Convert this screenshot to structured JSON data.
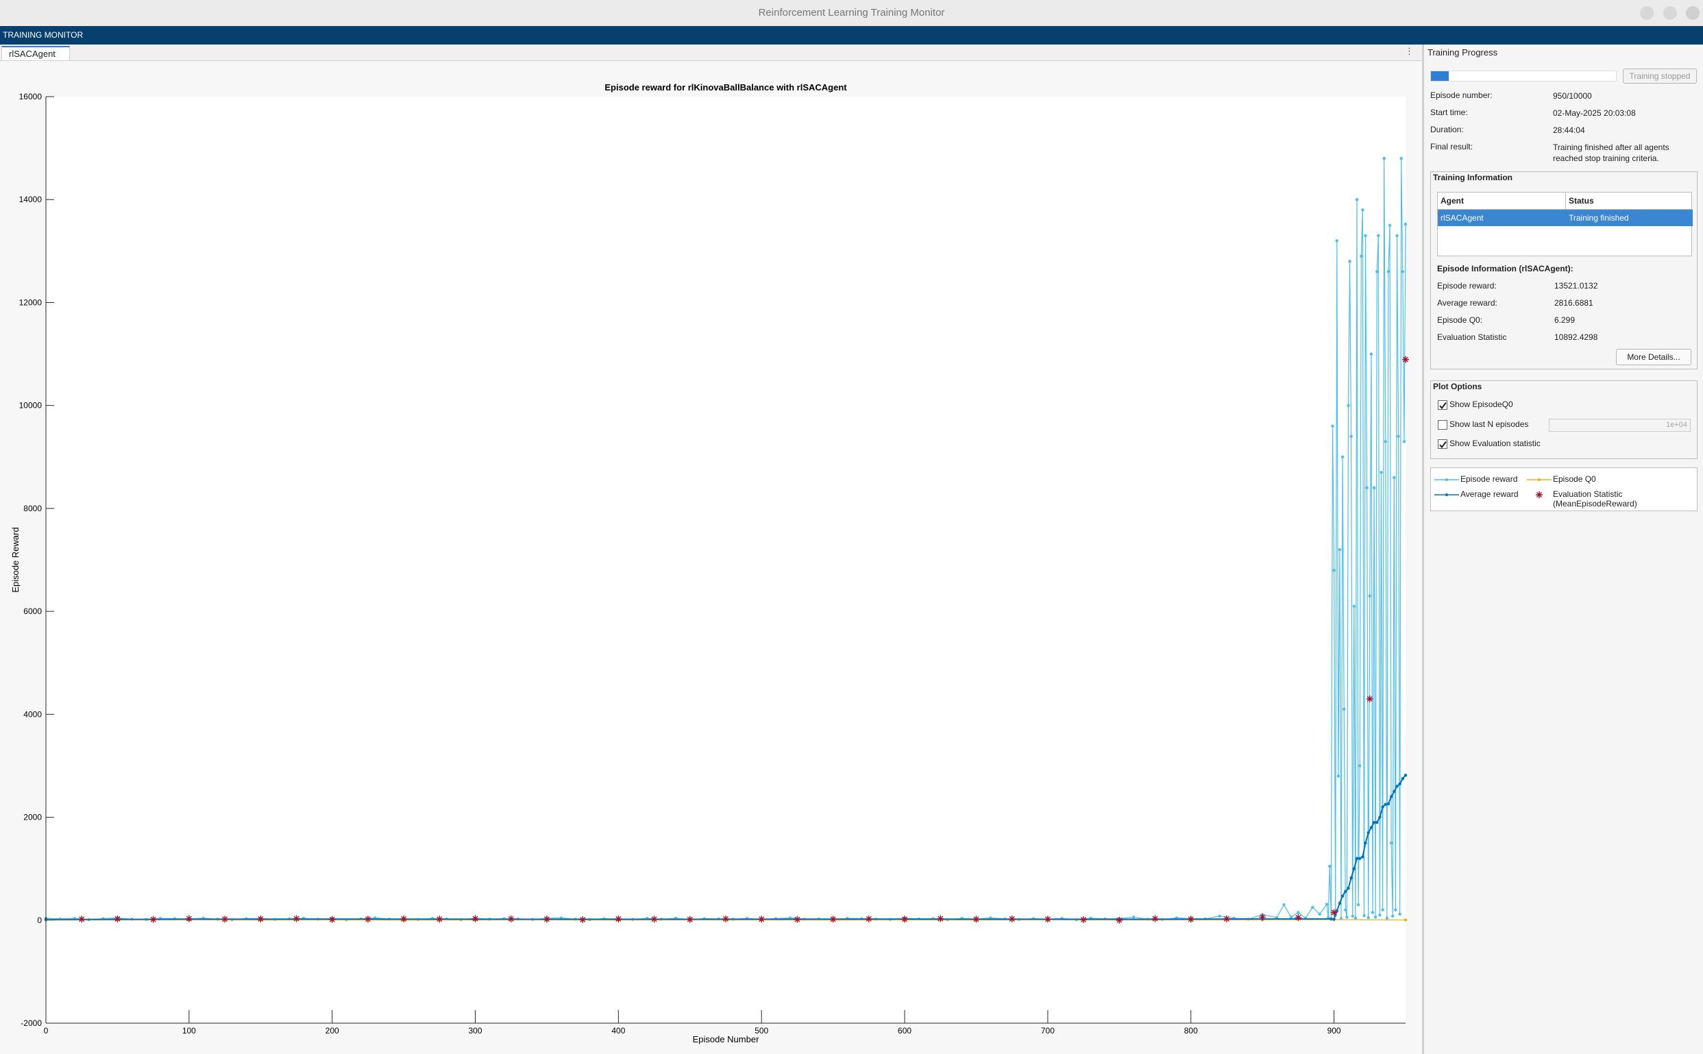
{
  "window": {
    "title": "Reinforcement Learning Training Monitor"
  },
  "toolstrip": {
    "title": "TRAINING MONITOR"
  },
  "tabs": [
    "rlSACAgent"
  ],
  "training_progress": {
    "title": "Training Progress",
    "button": "Training stopped",
    "fields": [
      {
        "label": "Episode number:",
        "value": "950/10000"
      },
      {
        "label": "Start time:",
        "value": "02-May-2025 20:03:08"
      },
      {
        "label": "Duration:",
        "value": "28:44:04"
      },
      {
        "label": "Final result:",
        "value": "Training finished after all agents reached stop training criteria."
      }
    ]
  },
  "training_information": {
    "title": "Training Information",
    "table": {
      "columns": [
        "Agent",
        "Status"
      ],
      "rows": [
        [
          "rlSACAgent",
          "Training finished"
        ]
      ]
    },
    "episode_information": {
      "title": "Episode Information (rlSACAgent):",
      "fields": [
        {
          "label": "Episode reward:",
          "value": "13521.0132"
        },
        {
          "label": "Average reward:",
          "value": "2816.6881"
        },
        {
          "label": "Episode Q0:",
          "value": "6.299"
        },
        {
          "label": "Evaluation Statistic",
          "value": "10892.4298"
        }
      ]
    },
    "button": "More Details..."
  },
  "plot_options": {
    "title": "Plot Options",
    "options": [
      {
        "label": "Show EpisodeQ0",
        "checked": true
      },
      {
        "label": "Show last N episodes",
        "checked": false,
        "input": "1e+04"
      },
      {
        "label": "Show Evaluation statistic",
        "checked": true
      }
    ]
  },
  "chart_data": {
    "type": "line",
    "title": "Episode reward for rlKinovaBallBalance with rlSACAgent",
    "x_label": "Episode Number",
    "y_label": "Episode Reward",
    "xlim": [
      0,
      950
    ],
    "ylim": [
      -2000,
      16000
    ],
    "xticks": [
      0,
      100,
      200,
      300,
      400,
      500,
      600,
      700,
      800,
      900
    ],
    "yticks": [
      -2000,
      0,
      2000,
      4000,
      6000,
      8000,
      10000,
      12000,
      14000,
      16000
    ],
    "series": [
      {
        "name": "Episode reward",
        "color": "#4dbeee",
        "marker": "dot",
        "x": [
          0,
          10,
          20,
          30,
          40,
          50,
          60,
          70,
          80,
          90,
          100,
          110,
          120,
          130,
          140,
          150,
          160,
          170,
          180,
          190,
          200,
          210,
          220,
          230,
          240,
          250,
          260,
          270,
          280,
          290,
          300,
          310,
          320,
          330,
          340,
          350,
          360,
          370,
          380,
          390,
          400,
          410,
          420,
          430,
          440,
          450,
          460,
          470,
          480,
          490,
          500,
          510,
          520,
          530,
          540,
          550,
          560,
          570,
          580,
          590,
          600,
          610,
          620,
          630,
          640,
          650,
          660,
          670,
          680,
          690,
          700,
          710,
          720,
          730,
          740,
          750,
          760,
          770,
          780,
          790,
          800,
          810,
          820,
          830,
          840,
          850,
          860,
          865,
          870,
          875,
          880,
          885,
          890,
          895,
          896,
          897,
          898,
          899,
          900,
          901,
          902,
          903,
          904,
          905,
          906,
          907,
          908,
          909,
          910,
          911,
          912,
          913,
          914,
          915,
          916,
          917,
          918,
          919,
          920,
          921,
          922,
          923,
          924,
          925,
          926,
          927,
          928,
          929,
          930,
          931,
          932,
          933,
          934,
          935,
          936,
          937,
          938,
          939,
          940,
          941,
          942,
          943,
          944,
          945,
          946,
          947,
          948,
          949,
          950
        ],
        "values": [
          40,
          25,
          35,
          10,
          30,
          45,
          20,
          15,
          35,
          30,
          25,
          40,
          20,
          10,
          30,
          35,
          15,
          25,
          40,
          20,
          30,
          10,
          25,
          45,
          20,
          30,
          15,
          35,
          25,
          10,
          40,
          20,
          30,
          25,
          15,
          35,
          45,
          20,
          10,
          30,
          25,
          15,
          35,
          20,
          40,
          10,
          30,
          25,
          20,
          35,
          15,
          30,
          45,
          20,
          25,
          10,
          35,
          30,
          20,
          15,
          40,
          25,
          30,
          10,
          35,
          20,
          45,
          25,
          15,
          30,
          20,
          35,
          10,
          40,
          25,
          30,
          60,
          20,
          15,
          45,
          30,
          25,
          80,
          40,
          20,
          110,
          50,
          300,
          60,
          150,
          40,
          250,
          120,
          310,
          50,
          1050,
          20,
          9600,
          6800,
          100,
          13200,
          2800,
          7200,
          30,
          9000,
          4100,
          200,
          60,
          10000,
          12800,
          9400,
          80,
          6100,
          40,
          14000,
          300,
          3000,
          12900,
          13800,
          90,
          13300,
          8400,
          50,
          6300,
          11000,
          150,
          8400,
          60,
          12600,
          13300,
          100,
          8700,
          200,
          14800,
          9300,
          40,
          12600,
          13500,
          1500,
          80,
          8600,
          200,
          13300,
          9400,
          120,
          14800,
          12600,
          9300,
          13521.0132
        ]
      },
      {
        "name": "Episode Q0",
        "color": "#edb120",
        "marker": "dot",
        "x": [
          0,
          50,
          100,
          150,
          200,
          250,
          300,
          350,
          400,
          450,
          500,
          550,
          600,
          650,
          700,
          750,
          800,
          850,
          900,
          950
        ],
        "values": [
          2,
          5,
          8,
          4,
          6,
          3,
          5,
          7,
          4,
          6,
          5,
          3,
          6,
          4,
          8,
          5,
          7,
          9,
          12,
          6.299
        ]
      },
      {
        "name": "Average reward",
        "color": "#0072bd",
        "marker": "dot",
        "x": [
          0,
          100,
          200,
          300,
          400,
          500,
          600,
          700,
          800,
          850,
          898,
          900,
          902,
          904,
          906,
          908,
          910,
          912,
          914,
          916,
          918,
          920,
          922,
          924,
          926,
          928,
          930,
          932,
          934,
          936,
          938,
          940,
          942,
          944,
          946,
          948,
          950
        ],
        "values": [
          15,
          20,
          22,
          20,
          18,
          20,
          22,
          18,
          20,
          25,
          25,
          20,
          180,
          330,
          470,
          560,
          620,
          820,
          1000,
          1200,
          1200,
          1230,
          1500,
          1700,
          1800,
          1900,
          1900,
          2000,
          2200,
          2250,
          2260,
          2400,
          2500,
          2600,
          2650,
          2750,
          2816.6881
        ]
      },
      {
        "name": "Evaluation Statistic (MeanEpisodeReward)",
        "color": "#a2142f",
        "marker": "star",
        "x": [
          25,
          50,
          75,
          100,
          125,
          150,
          175,
          200,
          225,
          250,
          275,
          300,
          325,
          350,
          375,
          400,
          425,
          450,
          475,
          500,
          525,
          550,
          575,
          600,
          625,
          650,
          675,
          700,
          725,
          750,
          775,
          800,
          825,
          850,
          875,
          900,
          925,
          950
        ],
        "values": [
          20,
          25,
          15,
          30,
          20,
          25,
          30,
          15,
          20,
          25,
          20,
          30,
          25,
          20,
          10,
          25,
          20,
          15,
          25,
          20,
          15,
          20,
          25,
          20,
          30,
          20,
          25,
          20,
          10,
          0,
          30,
          20,
          25,
          60,
          50,
          150,
          4300,
          10892.4298
        ]
      }
    ]
  }
}
